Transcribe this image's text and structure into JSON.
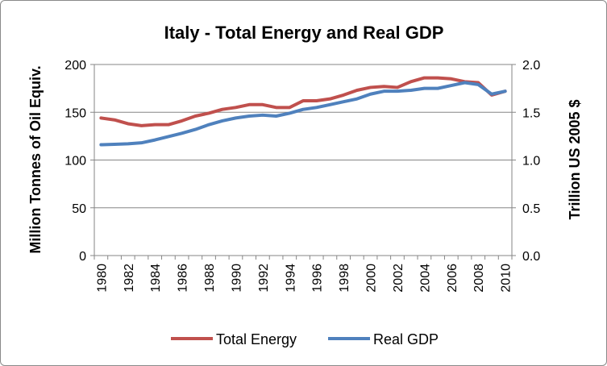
{
  "chart_data": {
    "type": "line",
    "title": "Italy - Total Energy and Real GDP",
    "ylabel_left": "Million Tonnes of Oil Equiv.",
    "ylabel_right": "Trillion US 2005 $",
    "ylim_left": [
      0,
      200
    ],
    "ylim_right": [
      0,
      2.0
    ],
    "yticks_left": [
      "0",
      "50",
      "100",
      "150",
      "200"
    ],
    "yticks_right": [
      "0.0",
      "0.5",
      "1.0",
      "1.5",
      "2.0"
    ],
    "xticks": [
      "1980",
      "1982",
      "1984",
      "1986",
      "1988",
      "1990",
      "1992",
      "1994",
      "1996",
      "1998",
      "2000",
      "2002",
      "2004",
      "2006",
      "2008",
      "2010"
    ],
    "x": [
      1980,
      1981,
      1982,
      1983,
      1984,
      1985,
      1986,
      1987,
      1988,
      1989,
      1990,
      1991,
      1992,
      1993,
      1994,
      1995,
      1996,
      1997,
      1998,
      1999,
      2000,
      2001,
      2002,
      2003,
      2004,
      2005,
      2006,
      2007,
      2008,
      2009,
      2010
    ],
    "series": [
      {
        "name": "Total Energy",
        "axis": "left",
        "color": "#c0504d",
        "values": [
          144,
          142,
          138,
          136,
          137,
          137,
          141,
          146,
          149,
          153,
          155,
          158,
          158,
          155,
          155,
          162,
          162,
          164,
          168,
          173,
          176,
          177,
          176,
          182,
          186,
          186,
          185,
          182,
          181,
          168,
          172
        ]
      },
      {
        "name": "Real GDP",
        "axis": "right",
        "color": "#4f81bd",
        "values": [
          1.16,
          1.165,
          1.17,
          1.18,
          1.21,
          1.245,
          1.28,
          1.32,
          1.37,
          1.41,
          1.44,
          1.46,
          1.47,
          1.46,
          1.49,
          1.53,
          1.55,
          1.58,
          1.61,
          1.64,
          1.69,
          1.72,
          1.72,
          1.73,
          1.75,
          1.75,
          1.78,
          1.81,
          1.79,
          1.69,
          1.72
        ]
      }
    ],
    "grid": true,
    "legend": "bottom"
  }
}
